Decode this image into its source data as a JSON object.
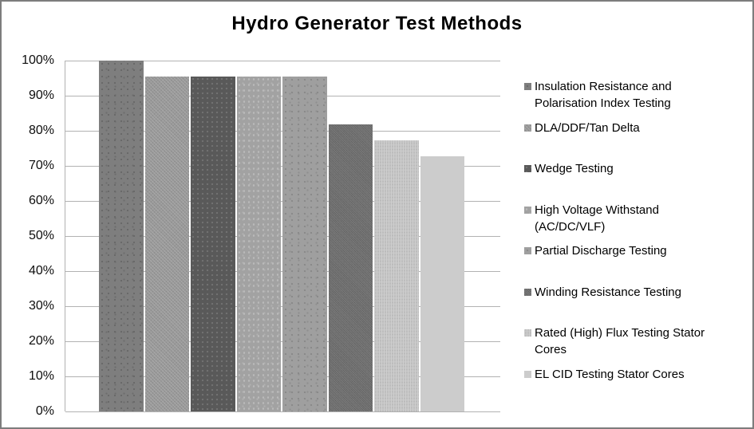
{
  "chart_data": {
    "type": "bar",
    "title": "Hydro Generator Test Methods",
    "categories": [
      "Insulation Resistance and Polarisation Index Testing",
      "DLA/DDF/Tan Delta",
      "Wedge Testing",
      "High Voltage Withstand (AC/DC/VLF)",
      "Partial Discharge Testing",
      "Winding Resistance Testing",
      "Rated (High) Flux Testing Stator Cores",
      "EL CID Testing Stator Cores"
    ],
    "values": [
      100,
      95.5,
      95.5,
      95.5,
      95.5,
      81.8,
      77.3,
      72.7
    ],
    "unit": "%",
    "ylim": [
      0,
      100
    ],
    "ytick_step": 10,
    "ytick_labels": [
      "100%",
      "90%",
      "80%",
      "70%",
      "60%",
      "50%",
      "40%",
      "30%",
      "20%",
      "10%",
      "0%"
    ],
    "grid": true,
    "legend_position": "right",
    "legend_lines": [
      "Insulation Resistance and\nPolarisation Index Testing",
      "DLA/DDF/Tan Delta",
      "Wedge Testing",
      "High Voltage Withstand\n(AC/DC/VLF)",
      "Partial Discharge Testing",
      "Winding Resistance Testing",
      "Rated (High) Flux Testing Stator\nCores",
      "EL CID Testing Stator Cores"
    ],
    "bar_colors": [
      "#7e7e7e",
      "#9a9a9a",
      "#595959",
      "#a2a2a2",
      "#9f9f9f",
      "#6e6e6e",
      "#c3c3c3",
      "#cccccc"
    ],
    "bar_patterns": [
      "dots-dark",
      "checker-light",
      "dots-grid-light",
      "dots-light",
      "dots-dark-sparse",
      "checker-dark",
      "weave-light",
      "solid"
    ],
    "colors": {
      "background": "#ffffff",
      "border": "#7d7d7d",
      "gridline": "#b2b2b2",
      "text": "#000000"
    }
  }
}
